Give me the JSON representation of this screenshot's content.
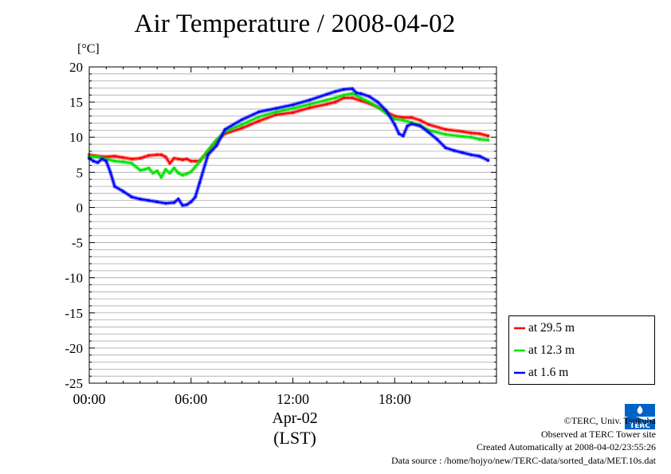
{
  "chart_data": {
    "type": "line",
    "title": "Air Temperature / 2008-04-02",
    "ylabel": "[°C]",
    "xlabel_date": "Apr-02",
    "xlabel_tz": "(LST)",
    "x_ticks": [
      {
        "label": "00:00",
        "hour": 0
      },
      {
        "label": "06:00",
        "hour": 6
      },
      {
        "label": "12:00",
        "hour": 12
      },
      {
        "label": "18:00",
        "hour": 18
      }
    ],
    "xlim_hours": [
      0,
      24
    ],
    "ylim": [
      -25,
      20
    ],
    "y_ticks": [
      20,
      15,
      10,
      5,
      0,
      -5,
      -10,
      -15,
      -20,
      -25
    ],
    "grid": "horizontal every 1 °C",
    "legend_position": "lower-right, outside plot",
    "series": [
      {
        "name": "at 29.5 m",
        "color": "#ff0000",
        "x_hours": [
          0,
          0.5,
          1,
          1.5,
          2,
          2.5,
          3,
          3.5,
          4,
          4.25,
          4.5,
          4.75,
          5,
          5.25,
          5.5,
          5.75,
          6,
          6.25,
          6.5,
          7,
          7.5,
          8,
          9,
          10,
          11,
          12,
          13,
          14,
          14.5,
          15,
          15.5,
          16,
          16.5,
          17,
          17.5,
          18,
          18.5,
          19,
          19.5,
          20,
          21,
          22,
          22.5,
          23,
          23.5
        ],
        "values": [
          7.5,
          7.3,
          7.2,
          7.3,
          7.1,
          6.9,
          7.0,
          7.4,
          7.5,
          7.5,
          7.2,
          6.3,
          7.0,
          6.9,
          6.8,
          6.9,
          6.6,
          6.6,
          6.6,
          8.0,
          9.5,
          10.5,
          11.3,
          12.3,
          13.2,
          13.5,
          14.2,
          14.7,
          15.0,
          15.6,
          15.6,
          15.2,
          14.8,
          14.3,
          13.6,
          13.0,
          12.8,
          12.8,
          12.4,
          11.8,
          11.1,
          10.8,
          10.6,
          10.5,
          10.2
        ]
      },
      {
        "name": "at 12.3 m",
        "color": "#00e000",
        "x_hours": [
          0,
          0.5,
          1,
          1.5,
          2,
          2.5,
          3,
          3.25,
          3.5,
          3.75,
          4,
          4.25,
          4.5,
          4.75,
          5,
          5.25,
          5.5,
          5.75,
          6,
          6.5,
          7,
          7.5,
          8,
          9,
          10,
          11,
          12,
          13,
          14,
          14.5,
          15,
          15.5,
          16,
          16.5,
          17,
          17.5,
          18,
          18.5,
          19,
          19.5,
          20,
          21,
          22,
          22.5,
          23,
          23.5
        ],
        "values": [
          7.3,
          7.2,
          6.9,
          6.6,
          6.5,
          6.3,
          5.3,
          5.4,
          5.6,
          4.9,
          5.2,
          4.3,
          5.4,
          4.9,
          5.6,
          4.9,
          4.6,
          4.8,
          5.1,
          6.5,
          8.1,
          9.6,
          10.8,
          11.8,
          12.9,
          13.6,
          14.1,
          14.7,
          15.3,
          15.6,
          16.0,
          16.2,
          15.6,
          15.0,
          14.3,
          13.4,
          12.6,
          12.4,
          12.1,
          11.7,
          11.0,
          10.4,
          10.1,
          10.0,
          9.7,
          9.6
        ]
      },
      {
        "name": "at 1.6 m",
        "color": "#0000ff",
        "x_hours": [
          0,
          0.25,
          0.5,
          0.75,
          1,
          1.25,
          1.5,
          2,
          2.5,
          3,
          3.5,
          4,
          4.5,
          5,
          5.25,
          5.5,
          5.75,
          6,
          6.25,
          6.5,
          7,
          7.5,
          8,
          9,
          10,
          11,
          12,
          13,
          14,
          14.5,
          15,
          15.5,
          15.75,
          16,
          16.5,
          17,
          17.5,
          18,
          18.25,
          18.5,
          18.75,
          19,
          19.5,
          20,
          20.5,
          21,
          21.5,
          22,
          22.5,
          23,
          23.5
        ],
        "values": [
          7.0,
          6.6,
          6.4,
          6.9,
          6.6,
          5.0,
          3.0,
          2.3,
          1.5,
          1.2,
          1.0,
          0.8,
          0.6,
          0.7,
          1.2,
          0.3,
          0.4,
          0.8,
          1.5,
          3.5,
          7.5,
          8.8,
          11.1,
          12.5,
          13.6,
          14.1,
          14.6,
          15.3,
          16.1,
          16.5,
          16.8,
          16.9,
          16.3,
          16.2,
          15.8,
          15.0,
          13.8,
          11.8,
          10.5,
          10.2,
          11.6,
          11.9,
          11.6,
          10.7,
          9.7,
          8.5,
          8.1,
          7.8,
          7.5,
          7.3,
          6.7
        ]
      }
    ]
  },
  "credits": {
    "copyright": "©TERC, Univ. Tsukuba",
    "site": "Observed at TERC Tower site",
    "created": "Created Automatically at 2008-04-02/23:55:26",
    "source": "Data source : /home/hojyo/new/TERC-data/sorted_data/MET.10s.dat"
  },
  "logo": {
    "text": "TERC",
    "color": "#0063c5"
  }
}
